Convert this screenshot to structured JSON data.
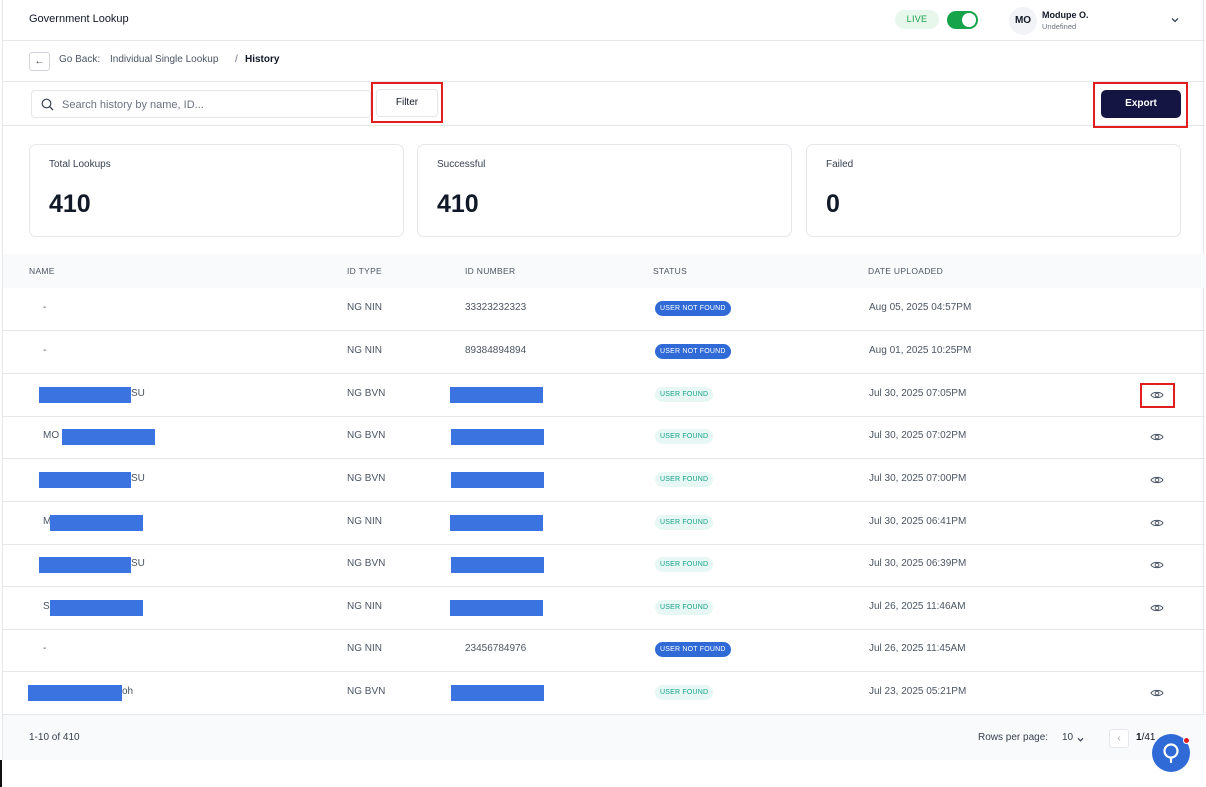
{
  "header": {
    "app_title": "Government Lookup",
    "live_label": "LIVE",
    "user": {
      "initials": "MO",
      "name": "Modupe O.",
      "role": "Undefined"
    }
  },
  "breadcrumb": {
    "back_label": "Go Back:",
    "parent": "Individual Single Lookup",
    "separator": "/",
    "current": "History"
  },
  "toolbar": {
    "search_placeholder": "Search history by name, ID...",
    "filter_label": "Filter",
    "export_label": "Export"
  },
  "stats": [
    {
      "label": "Total Lookups",
      "value": "410"
    },
    {
      "label": "Successful",
      "value": "410"
    },
    {
      "label": "Failed",
      "value": "0"
    }
  ],
  "table": {
    "columns": [
      "NAME",
      "ID TYPE",
      "ID NUMBER",
      "STATUS",
      "DATE UPLOADED"
    ],
    "rows": [
      {
        "name": "-",
        "id_type": "NG NIN",
        "id_number": "33323232323",
        "status": "USER NOT FOUND",
        "date": "Aug 05, 2025 04:57PM"
      },
      {
        "name": "-",
        "id_type": "NG NIN",
        "id_number": "89384894894",
        "status": "USER NOT FOUND",
        "date": "Aug 01, 2025 10:25PM"
      },
      {
        "name": "SU",
        "id_type": "NG BVN",
        "id_number": "",
        "status": "USER FOUND",
        "date": "Jul 30, 2025 07:05PM"
      },
      {
        "name": "MO",
        "id_type": "NG BVN",
        "id_number": "",
        "status": "USER FOUND",
        "date": "Jul 30, 2025 07:02PM"
      },
      {
        "name": "SU",
        "id_type": "NG BVN",
        "id_number": "",
        "status": "USER FOUND",
        "date": "Jul 30, 2025 07:00PM"
      },
      {
        "name": "M",
        "id_type": "NG NIN",
        "id_number": "",
        "status": "USER FOUND",
        "date": "Jul 30, 2025 06:41PM"
      },
      {
        "name": "SU",
        "id_type": "NG BVN",
        "id_number": "",
        "status": "USER FOUND",
        "date": "Jul 30, 2025 06:39PM"
      },
      {
        "name": "S",
        "id_type": "NG NIN",
        "id_number": "",
        "status": "USER FOUND",
        "date": "Jul 26, 2025 11:46AM"
      },
      {
        "name": "-",
        "id_type": "NG NIN",
        "id_number": "23456784976",
        "status": "USER NOT FOUND",
        "date": "Jul 26, 2025 11:45AM"
      },
      {
        "name": "oh",
        "id_type": "NG BVN",
        "id_number": "",
        "status": "USER FOUND",
        "date": "Jul 23, 2025 05:21PM"
      }
    ]
  },
  "footer": {
    "range": "1-10 of 410",
    "rows_per_page_label": "Rows per page:",
    "rows_per_page_value": "10",
    "page_current": "1",
    "page_total": "/41"
  },
  "colors": {
    "brand_dark": "#141543",
    "live_green": "#16a34a",
    "not_found_badge": "#2f6ad6",
    "found_badge_text": "#17a28a",
    "highlight_red": "#e11d1d"
  },
  "icons": [
    "search-icon",
    "back-arrow-icon",
    "chevron-down-icon",
    "eye-icon",
    "chevron-left-icon",
    "help-chat-icon"
  ]
}
